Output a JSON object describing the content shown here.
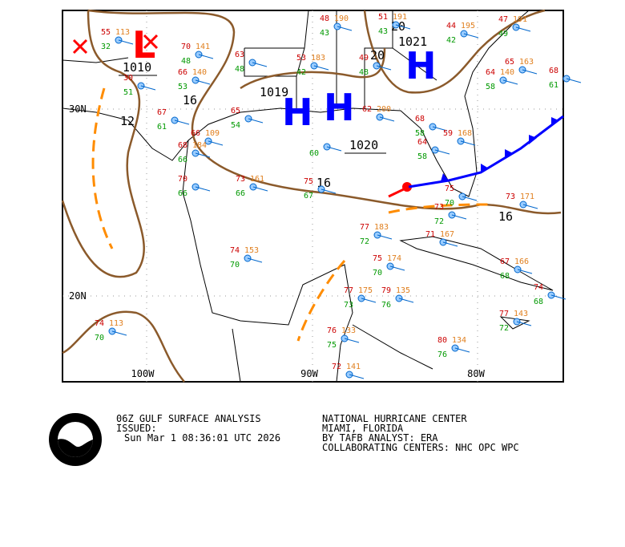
{
  "map": {
    "lat_labels": [
      "30N",
      "20N"
    ],
    "lon_labels": [
      "100W",
      "90W",
      "80W"
    ],
    "isobar_labels": [
      "1010",
      "1019",
      "1020",
      "1021",
      "16",
      "16",
      "16",
      "20",
      "20",
      "12"
    ],
    "centers": [
      "L",
      "H",
      "H",
      "H"
    ],
    "stations": [
      {
        "t": "55",
        "p": "113",
        "d": "32"
      },
      {
        "t": "70",
        "p": "141",
        "d": "48"
      },
      {
        "t": "66",
        "p": "140",
        "d": "53"
      },
      {
        "t": "30",
        "d": "51"
      },
      {
        "t": "67",
        "d": "61"
      },
      {
        "t": "63",
        "d": "48"
      },
      {
        "t": "53",
        "p": "183",
        "d": "42"
      },
      {
        "t": "48",
        "p": "190",
        "d": "43"
      },
      {
        "t": "51",
        "p": "191",
        "d": "43"
      },
      {
        "t": "44",
        "p": "195",
        "d": "42"
      },
      {
        "t": "47",
        "p": "191",
        "d": "49"
      },
      {
        "t": "49",
        "d": "48"
      },
      {
        "t": "65",
        "p": "163"
      },
      {
        "t": "64",
        "p": "140",
        "d": "58"
      },
      {
        "t": "68",
        "d": "61"
      },
      {
        "t": "65",
        "d": "54"
      },
      {
        "t": "66",
        "p": "109"
      },
      {
        "t": "68",
        "p": "184",
        "d": "66"
      },
      {
        "t": "70",
        "d": "66"
      },
      {
        "t": "73",
        "p": "161",
        "d": "66"
      },
      {
        "t": "75",
        "d": "67"
      },
      {
        "d": "60"
      },
      {
        "t": "62",
        "p": "200"
      },
      {
        "t": "68",
        "d": "58"
      },
      {
        "t": "64",
        "d": "58"
      },
      {
        "t": "59",
        "p": "168"
      },
      {
        "t": "73",
        "p": "171"
      },
      {
        "t": "75",
        "d": "70"
      },
      {
        "t": "73",
        "d": "72"
      },
      {
        "t": "77",
        "p": "183",
        "d": "72"
      },
      {
        "t": "71",
        "p": "167"
      },
      {
        "t": "75",
        "p": "174",
        "d": "70"
      },
      {
        "t": "74",
        "p": "153",
        "d": "70"
      },
      {
        "t": "77",
        "p": "175",
        "d": "73"
      },
      {
        "t": "79",
        "p": "135",
        "d": "76"
      },
      {
        "t": "67",
        "p": "166",
        "d": "68"
      },
      {
        "t": "74",
        "d": "68"
      },
      {
        "t": "77",
        "p": "143",
        "d": "72"
      },
      {
        "t": "80",
        "p": "134",
        "d": "76"
      },
      {
        "t": "74",
        "p": "113",
        "d": "70"
      },
      {
        "t": "76",
        "p": "133",
        "d": "75"
      },
      {
        "t": "72",
        "p": "141"
      }
    ]
  },
  "caption": {
    "title": "06Z GULF SURFACE ANALYSIS",
    "issued": "ISSUED:",
    "time": "Sun Mar 1 08:36:01 UTC 2026",
    "center": "NATIONAL HURRICANE CENTER",
    "city": "MIAMI, FLORIDA",
    "analyst": "BY TAFB ANALYST: ERA",
    "collab": "COLLABORATING CENTERS: NHC OPC WPC",
    "logo": "NOAA"
  }
}
